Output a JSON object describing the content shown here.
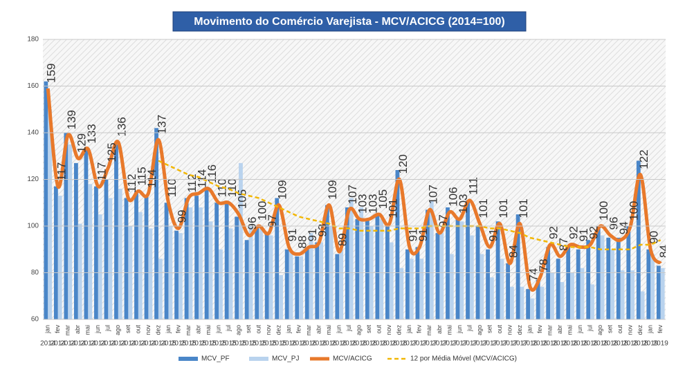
{
  "chart_data": {
    "type": "bar-line",
    "title": "Movimento do Comércio Varejista - MCV/ACICG (2014=100)",
    "categories": [
      "jan",
      "fev",
      "mar",
      "abr",
      "mai",
      "jun",
      "jul",
      "ago",
      "set",
      "out",
      "nov",
      "dez",
      "jan",
      "fev",
      "mar",
      "abr",
      "mai",
      "jun",
      "jul",
      "ago",
      "set",
      "out",
      "nov",
      "dez",
      "jan",
      "fev",
      "mar",
      "abr",
      "mai",
      "jun",
      "jul",
      "ago",
      "set",
      "out",
      "nov",
      "dez",
      "jan",
      "fev",
      "mar",
      "abr",
      "mai",
      "jun",
      "jul",
      "ago",
      "set",
      "out",
      "nov",
      "dez",
      "jan",
      "fev",
      "mar",
      "abr",
      "mai",
      "jun",
      "jul",
      "ago",
      "set",
      "out",
      "nov",
      "dez",
      "jan",
      "fev"
    ],
    "years": [
      "2014",
      "2014",
      "2014",
      "2014",
      "2014",
      "2014",
      "2014",
      "2014",
      "2014",
      "2014",
      "2014",
      "2014",
      "2015",
      "2015",
      "2015",
      "2015",
      "2015",
      "2015",
      "2015",
      "2015",
      "2015",
      "2015",
      "2015",
      "2015",
      "2016",
      "2016",
      "2016",
      "2016",
      "2016",
      "2016",
      "2016",
      "2016",
      "2016",
      "2016",
      "2016",
      "2016",
      "2017",
      "2017",
      "2017",
      "2017",
      "2017",
      "2017",
      "2017",
      "2017",
      "2017",
      "2017",
      "2017",
      "2017",
      "2018",
      "2018",
      "2018",
      "2018",
      "2018",
      "2018",
      "2018",
      "2018",
      "2018",
      "2018",
      "2018",
      "2018",
      "2019",
      "2019"
    ],
    "ylim": [
      60,
      180
    ],
    "yticks": [
      60,
      80,
      100,
      120,
      140,
      160,
      180
    ],
    "grid": true,
    "series": [
      {
        "name": "MCV_PF",
        "kind": "bar",
        "color": "#4a86c8",
        "values": [
          162,
          117,
          140,
          127,
          133,
          117,
          120,
          135,
          112,
          115,
          113,
          142,
          110,
          98,
          112,
          113,
          116,
          110,
          110,
          104,
          94,
          100,
          97,
          112,
          90,
          87,
          90,
          93,
          109,
          88,
          108,
          103,
          103,
          105,
          101,
          124,
          90,
          91,
          107,
          97,
          108,
          103,
          111,
          100,
          90,
          102,
          84,
          105,
          73,
          77,
          91,
          86,
          91,
          90,
          94,
          100,
          95,
          95,
          100,
          128,
          90,
          83
        ]
      },
      {
        "name": "MCV_PJ",
        "kind": "bar",
        "color": "#b9d3ee",
        "values": [
          150,
          113,
          135,
          101,
          118,
          105,
          112,
          116,
          100,
          106,
          99,
          86,
          100,
          97,
          108,
          108,
          102,
          90,
          99,
          127,
          100,
          99,
          96,
          79,
          89,
          87,
          97,
          93,
          100,
          90,
          112,
          108,
          100,
          103,
          93,
          82,
          86,
          86,
          111,
          97,
          88,
          102,
          96,
          88,
          78,
          86,
          74,
          74,
          69,
          74,
          80,
          76,
          80,
          82,
          75,
          96,
          90,
          81,
          81,
          72,
          88,
          82
        ]
      },
      {
        "name": "MCV/ACICG",
        "kind": "line",
        "color": "#e8792b",
        "values": [
          159,
          117,
          139,
          129,
          133,
          117,
          125,
          136,
          112,
          115,
          114,
          137,
          110,
          99,
          112,
          114,
          116,
          110,
          110,
          105,
          96,
          100,
          97,
          109,
          91,
          88,
          91,
          93,
          109,
          89,
          107,
          103,
          103,
          105,
          101,
          120,
          91,
          91,
          107,
          97,
          106,
          103,
          111,
          101,
          91,
          101,
          84,
          101,
          74,
          78,
          92,
          87,
          92,
          91,
          92,
          100,
          96,
          94,
          100,
          122,
          90,
          84
        ]
      },
      {
        "name": "12 por Média Móvel (MCV/ACICG)",
        "kind": "dashed",
        "color": "#f2b705",
        "values": [
          null,
          null,
          null,
          null,
          null,
          null,
          null,
          null,
          null,
          null,
          null,
          128,
          126,
          124,
          122,
          121,
          119,
          117,
          116,
          114,
          113,
          112,
          110,
          108,
          106,
          104,
          103,
          102,
          101,
          99,
          99,
          98,
          98,
          98,
          98,
          99,
          99,
          99,
          100,
          100,
          100,
          100,
          100,
          100,
          99,
          99,
          98,
          97,
          95,
          94,
          93,
          92,
          91,
          91,
          91,
          90,
          90,
          90,
          90,
          92,
          92,
          94
        ]
      }
    ]
  }
}
